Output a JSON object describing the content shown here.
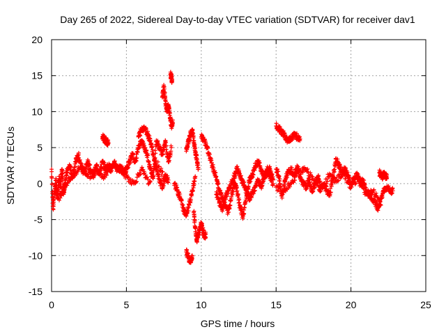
{
  "chart_data": {
    "type": "scatter",
    "title": "Day 265 of 2022, Sidereal Day-to-day VTEC variation (SDTVAR) for receiver dav1",
    "xlabel": "GPS time / hours",
    "ylabel": "SDTVAR / TECUs",
    "xlim": [
      0,
      25
    ],
    "ylim": [
      -15,
      20
    ],
    "x_ticks": [
      0,
      5,
      10,
      15,
      20,
      25
    ],
    "x_tick_labels": [
      "0",
      "5",
      "10",
      "15",
      "20",
      "25"
    ],
    "y_ticks": [
      -15,
      -10,
      -5,
      0,
      5,
      10,
      15,
      20
    ],
    "y_tick_labels": [
      "-15",
      "-10",
      "-5",
      "0",
      "5",
      "10",
      "15",
      "20"
    ],
    "grid": true,
    "marker": "+",
    "color": "#ff0000",
    "series": [
      {
        "name": "dav1",
        "segments": [
          {
            "x": [
              0.0,
              0.1,
              0.2,
              0.3,
              0.4,
              0.5,
              0.6,
              0.7,
              0.8,
              0.9,
              1.0,
              1.2,
              1.4,
              1.6,
              1.8,
              2.0,
              2.2,
              2.4,
              2.6,
              2.8,
              3.0,
              3.2,
              3.4,
              3.6,
              3.8,
              4.0,
              4.2,
              4.4,
              4.6,
              4.8,
              5.0,
              5.2,
              5.4,
              5.6,
              5.8,
              6.0,
              6.2,
              6.4,
              6.6,
              6.8,
              7.0,
              7.2,
              7.4,
              7.6,
              7.8,
              8.0
            ],
            "y": [
              2.0,
              -3.5,
              -1.0,
              0.5,
              -2.0,
              1.0,
              -0.5,
              2.0,
              -1.5,
              0.0,
              1.5,
              2.5,
              1.0,
              3.0,
              4.0,
              2.0,
              1.5,
              3.0,
              2.0,
              1.0,
              2.5,
              1.5,
              3.0,
              2.0,
              2.5,
              1.8,
              3.0,
              2.0,
              2.5,
              1.5,
              2.0,
              3.0,
              4.0,
              3.0,
              5.0,
              6.0,
              5.0,
              4.0,
              2.0,
              1.0,
              6.0,
              5.0,
              4.0,
              6.0,
              3.0,
              5.0
            ]
          },
          {
            "x": [
              0.2,
              0.5,
              0.8,
              1.2,
              1.6,
              2.0,
              2.5,
              3.0,
              3.5,
              4.0,
              4.5,
              5.0,
              5.5,
              6.0,
              6.5,
              7.0,
              7.5
            ],
            "y": [
              -1.0,
              -2.0,
              -0.5,
              0.5,
              1.5,
              2.5,
              1.0,
              2.0,
              1.0,
              2.5,
              2.0,
              1.0,
              0.0,
              2.0,
              0.0,
              3.0,
              1.0
            ]
          },
          {
            "x": [
              3.4,
              3.5,
              3.6,
              3.7,
              3.8
            ],
            "y": [
              6.5,
              6.3,
              6.0,
              5.8,
              5.6
            ]
          },
          {
            "x": [
              5.8,
              6.0,
              6.2,
              6.4,
              6.6,
              6.8,
              7.0,
              7.2,
              7.4,
              7.6,
              7.8
            ],
            "y": [
              6.5,
              7.5,
              7.8,
              7.0,
              6.0,
              4.0,
              2.0,
              0.5,
              -0.5,
              1.0,
              0.5
            ]
          },
          {
            "x": [
              7.4,
              7.5,
              7.6,
              7.7,
              7.8,
              7.9,
              8.0,
              8.1
            ],
            "y": [
              12.0,
              13.5,
              11.5,
              10.0,
              11.0,
              9.5,
              8.0,
              8.5
            ]
          },
          {
            "x": [
              7.95,
              8.0,
              8.05
            ],
            "y": [
              15.2,
              14.8,
              14.2
            ]
          },
          {
            "x": [
              8.2,
              8.4,
              8.6,
              8.8,
              9.0,
              9.2,
              9.4,
              9.6
            ],
            "y": [
              0.0,
              -1.0,
              -2.0,
              -3.5,
              -4.5,
              -3.0,
              -1.0,
              1.0
            ]
          },
          {
            "x": [
              9.0,
              9.1,
              9.2,
              9.3,
              9.4
            ],
            "y": [
              -9.5,
              -10.0,
              -10.5,
              -11.0,
              -10.0
            ]
          },
          {
            "x": [
              9.5,
              9.6,
              9.7,
              9.8,
              9.9,
              10.0,
              10.1,
              10.2,
              10.3
            ],
            "y": [
              -4.0,
              -6.0,
              -8.0,
              -7.0,
              -6.5,
              -5.5,
              -6.5,
              -7.5,
              -7.0
            ]
          },
          {
            "x": [
              9.0,
              9.1,
              9.2,
              9.3,
              9.4,
              9.5,
              9.6,
              9.7,
              9.8
            ],
            "y": [
              4.5,
              5.5,
              6.3,
              7.0,
              7.5,
              6.0,
              4.5,
              3.5,
              2.0
            ]
          },
          {
            "x": [
              10.0,
              10.2,
              10.4,
              10.6,
              10.8,
              11.0,
              11.2,
              11.4,
              11.6,
              11.8,
              12.0,
              12.2,
              12.4,
              12.6,
              12.8,
              13.0,
              13.2,
              13.4,
              13.6,
              13.8,
              14.0,
              14.2,
              14.4,
              14.6,
              14.8
            ],
            "y": [
              6.5,
              6.0,
              5.0,
              3.5,
              2.0,
              1.0,
              -1.0,
              -2.0,
              -3.0,
              -4.0,
              -2.0,
              0.0,
              -1.0,
              -3.5,
              -4.5,
              -2.0,
              0.5,
              1.0,
              2.5,
              3.0,
              2.0,
              1.0,
              1.5,
              2.0,
              0.5
            ]
          },
          {
            "x": [
              11.0,
              11.2,
              11.4,
              11.6,
              11.8,
              12.0,
              12.2,
              12.4,
              12.6,
              12.8,
              13.0,
              13.2,
              13.4,
              13.6,
              13.8,
              14.0,
              14.2,
              14.4,
              14.6,
              14.8
            ],
            "y": [
              -1.5,
              -2.5,
              -3.5,
              -2.0,
              -1.0,
              0.0,
              1.0,
              2.0,
              1.0,
              0.0,
              -1.0,
              -2.0,
              -1.5,
              -0.5,
              0.5,
              -0.5,
              1.0,
              2.0,
              1.0,
              0.0
            ]
          },
          {
            "x": [
              15.0,
              15.2,
              15.4,
              15.6,
              15.8,
              16.0,
              16.2,
              16.4,
              16.6
            ],
            "y": [
              8.0,
              7.6,
              7.2,
              6.5,
              6.0,
              6.3,
              6.8,
              6.5,
              6.2
            ]
          },
          {
            "x": [
              15.0,
              15.2,
              15.4,
              15.6,
              15.8,
              16.0,
              16.2,
              16.4,
              16.6,
              16.8,
              17.0,
              17.2,
              17.4,
              17.6,
              17.8,
              18.0,
              18.2,
              18.4,
              18.6,
              18.8,
              19.0,
              19.2,
              19.4,
              19.6,
              19.8,
              20.0,
              20.2,
              20.4,
              20.6,
              20.8,
              21.0,
              21.2,
              21.4,
              21.6,
              21.8,
              22.0,
              22.2,
              22.4,
              22.6,
              22.8
            ],
            "y": [
              2.0,
              1.0,
              -2.0,
              0.5,
              1.5,
              2.0,
              1.0,
              2.5,
              1.0,
              0.0,
              -0.5,
              0.5,
              -1.0,
              0.0,
              1.0,
              -0.5,
              0.0,
              -1.0,
              -1.5,
              1.0,
              3.5,
              2.5,
              1.5,
              2.0,
              1.0,
              0.0,
              0.5,
              1.5,
              0.0,
              0.5,
              -1.0,
              -1.5,
              -2.0,
              -2.5,
              -3.5,
              -2.0,
              -1.0,
              -0.5,
              -1.0,
              -1.0
            ]
          },
          {
            "x": [
              15.0,
              15.5,
              16.0,
              16.5,
              17.0,
              17.5,
              18.0,
              18.5,
              19.0,
              19.5,
              20.0,
              20.5,
              21.0,
              21.5,
              22.0
            ],
            "y": [
              -0.5,
              -1.0,
              0.0,
              1.5,
              2.0,
              0.5,
              -1.0,
              1.0,
              0.5,
              1.5,
              -0.5,
              1.0,
              -1.5,
              -1.0,
              -3.0
            ]
          },
          {
            "x": [
              21.9,
              22.0,
              22.1,
              22.2,
              22.3,
              22.4
            ],
            "y": [
              1.5,
              1.2,
              1.0,
              1.3,
              1.1,
              0.8
            ]
          }
        ]
      }
    ]
  }
}
